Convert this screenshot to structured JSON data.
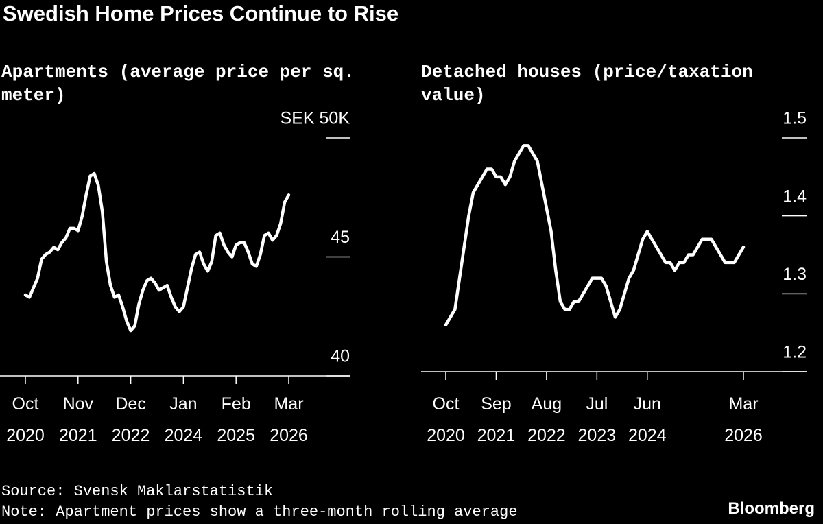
{
  "title": "Swedish Home Prices Continue to Rise",
  "source": "Source: Svensk Maklarstatistik",
  "note": "Note: Apartment prices show a three-month rolling average",
  "brand": "Bloomberg",
  "chart_data": [
    {
      "type": "line",
      "title": "Apartments (average price per sq. meter)",
      "x": [
        "2020-10",
        "2020-11",
        "2020-12",
        "2021-01",
        "2021-02",
        "2021-03",
        "2021-04",
        "2021-05",
        "2021-06",
        "2021-07",
        "2021-08",
        "2021-09",
        "2021-10",
        "2021-11",
        "2021-12",
        "2022-01",
        "2022-02",
        "2022-03",
        "2022-04",
        "2022-05",
        "2022-06",
        "2022-07",
        "2022-08",
        "2022-09",
        "2022-10",
        "2022-11",
        "2022-12",
        "2023-01",
        "2023-02",
        "2023-03",
        "2023-04",
        "2023-05",
        "2023-06",
        "2023-07",
        "2023-08",
        "2023-09",
        "2023-10",
        "2023-11",
        "2023-12",
        "2024-01",
        "2024-02",
        "2024-03",
        "2024-04",
        "2024-05",
        "2024-06",
        "2024-07",
        "2024-08",
        "2024-09",
        "2024-10",
        "2024-11",
        "2024-12",
        "2025-01",
        "2025-02",
        "2025-03",
        "2025-04",
        "2025-05",
        "2025-06",
        "2025-07",
        "2025-08",
        "2025-09",
        "2025-10",
        "2025-11",
        "2025-12",
        "2026-01",
        "2026-02",
        "2026-03"
      ],
      "series": [
        {
          "name": "Apartments",
          "color": "#ffffff",
          "values": [
            43.4,
            43.3,
            43.7,
            44.1,
            44.9,
            45.1,
            45.2,
            45.4,
            45.3,
            45.6,
            45.8,
            46.2,
            46.2,
            46.1,
            46.7,
            47.6,
            48.4,
            48.5,
            48.0,
            46.9,
            44.8,
            43.8,
            43.3,
            43.4,
            42.9,
            42.3,
            41.9,
            42.1,
            43.0,
            43.6,
            44.0,
            44.1,
            43.9,
            43.6,
            43.7,
            43.8,
            43.3,
            42.9,
            42.7,
            42.9,
            43.7,
            44.5,
            45.1,
            45.2,
            44.7,
            44.4,
            44.8,
            45.9,
            46.0,
            45.5,
            45.2,
            45.0,
            45.5,
            45.6,
            45.6,
            45.2,
            44.7,
            44.6,
            45.1,
            45.9,
            46.0,
            45.7,
            45.9,
            46.4,
            47.3,
            47.6
          ]
        }
      ],
      "xticks": [
        {
          "value": "2020-10",
          "label": "Oct 2020"
        },
        {
          "value": "2021-11",
          "label": "Nov 2021"
        },
        {
          "value": "2022-12",
          "label": "Dec 2022"
        },
        {
          "value": "2024-01",
          "label": "Jan 2024"
        },
        {
          "value": "2025-02",
          "label": "Feb 2025"
        },
        {
          "value": "2026-03",
          "label": "Mar 2026"
        }
      ],
      "ylim": [
        40,
        50
      ],
      "yticks": [
        {
          "value": 50,
          "label": "SEK 50K"
        },
        45,
        40
      ]
    },
    {
      "type": "line",
      "title": "Detached houses (price/taxation value)",
      "x": [
        "2020-10",
        "2020-11",
        "2020-12",
        "2021-01",
        "2021-02",
        "2021-03",
        "2021-04",
        "2021-05",
        "2021-06",
        "2021-07",
        "2021-08",
        "2021-09",
        "2021-10",
        "2021-11",
        "2021-12",
        "2022-01",
        "2022-02",
        "2022-03",
        "2022-04",
        "2022-05",
        "2022-06",
        "2022-07",
        "2022-08",
        "2022-09",
        "2022-10",
        "2022-11",
        "2022-12",
        "2023-01",
        "2023-02",
        "2023-03",
        "2023-04",
        "2023-05",
        "2023-06",
        "2023-07",
        "2023-08",
        "2023-09",
        "2023-10",
        "2023-11",
        "2023-12",
        "2024-01",
        "2024-02",
        "2024-03",
        "2024-04",
        "2024-05",
        "2024-06",
        "2024-07",
        "2024-08",
        "2024-09",
        "2024-10",
        "2024-11",
        "2024-12",
        "2025-01",
        "2025-02",
        "2025-03",
        "2025-04",
        "2025-05",
        "2025-06",
        "2025-07",
        "2025-08",
        "2025-09",
        "2025-10",
        "2025-11",
        "2025-12",
        "2026-01",
        "2026-02",
        "2026-03"
      ],
      "series": [
        {
          "name": "Detached houses",
          "color": "#ffffff",
          "values": [
            1.26,
            1.27,
            1.28,
            1.32,
            1.36,
            1.4,
            1.43,
            1.44,
            1.45,
            1.46,
            1.46,
            1.45,
            1.45,
            1.44,
            1.45,
            1.47,
            1.48,
            1.49,
            1.49,
            1.48,
            1.47,
            1.44,
            1.41,
            1.38,
            1.33,
            1.29,
            1.28,
            1.28,
            1.29,
            1.29,
            1.3,
            1.31,
            1.32,
            1.32,
            1.32,
            1.31,
            1.29,
            1.27,
            1.28,
            1.3,
            1.32,
            1.33,
            1.35,
            1.37,
            1.38,
            1.37,
            1.36,
            1.35,
            1.34,
            1.34,
            1.33,
            1.34,
            1.34,
            1.35,
            1.35,
            1.36,
            1.37,
            1.37,
            1.37,
            1.36,
            1.35,
            1.34,
            1.34,
            1.34,
            1.35,
            1.36
          ]
        }
      ],
      "xticks": [
        {
          "value": "2020-10",
          "label": "Oct 2020"
        },
        {
          "value": "2021-09",
          "label": "Sep 2021"
        },
        {
          "value": "2022-08",
          "label": "Aug 2022"
        },
        {
          "value": "2023-07",
          "label": "Jul 2023"
        },
        {
          "value": "2024-06",
          "label": "Jun 2024"
        },
        {
          "value": "2026-03",
          "label": "Mar 2026"
        }
      ],
      "ylim": [
        1.2,
        1.5
      ],
      "yticks": [
        1.5,
        1.4,
        1.3,
        1.2
      ]
    }
  ]
}
